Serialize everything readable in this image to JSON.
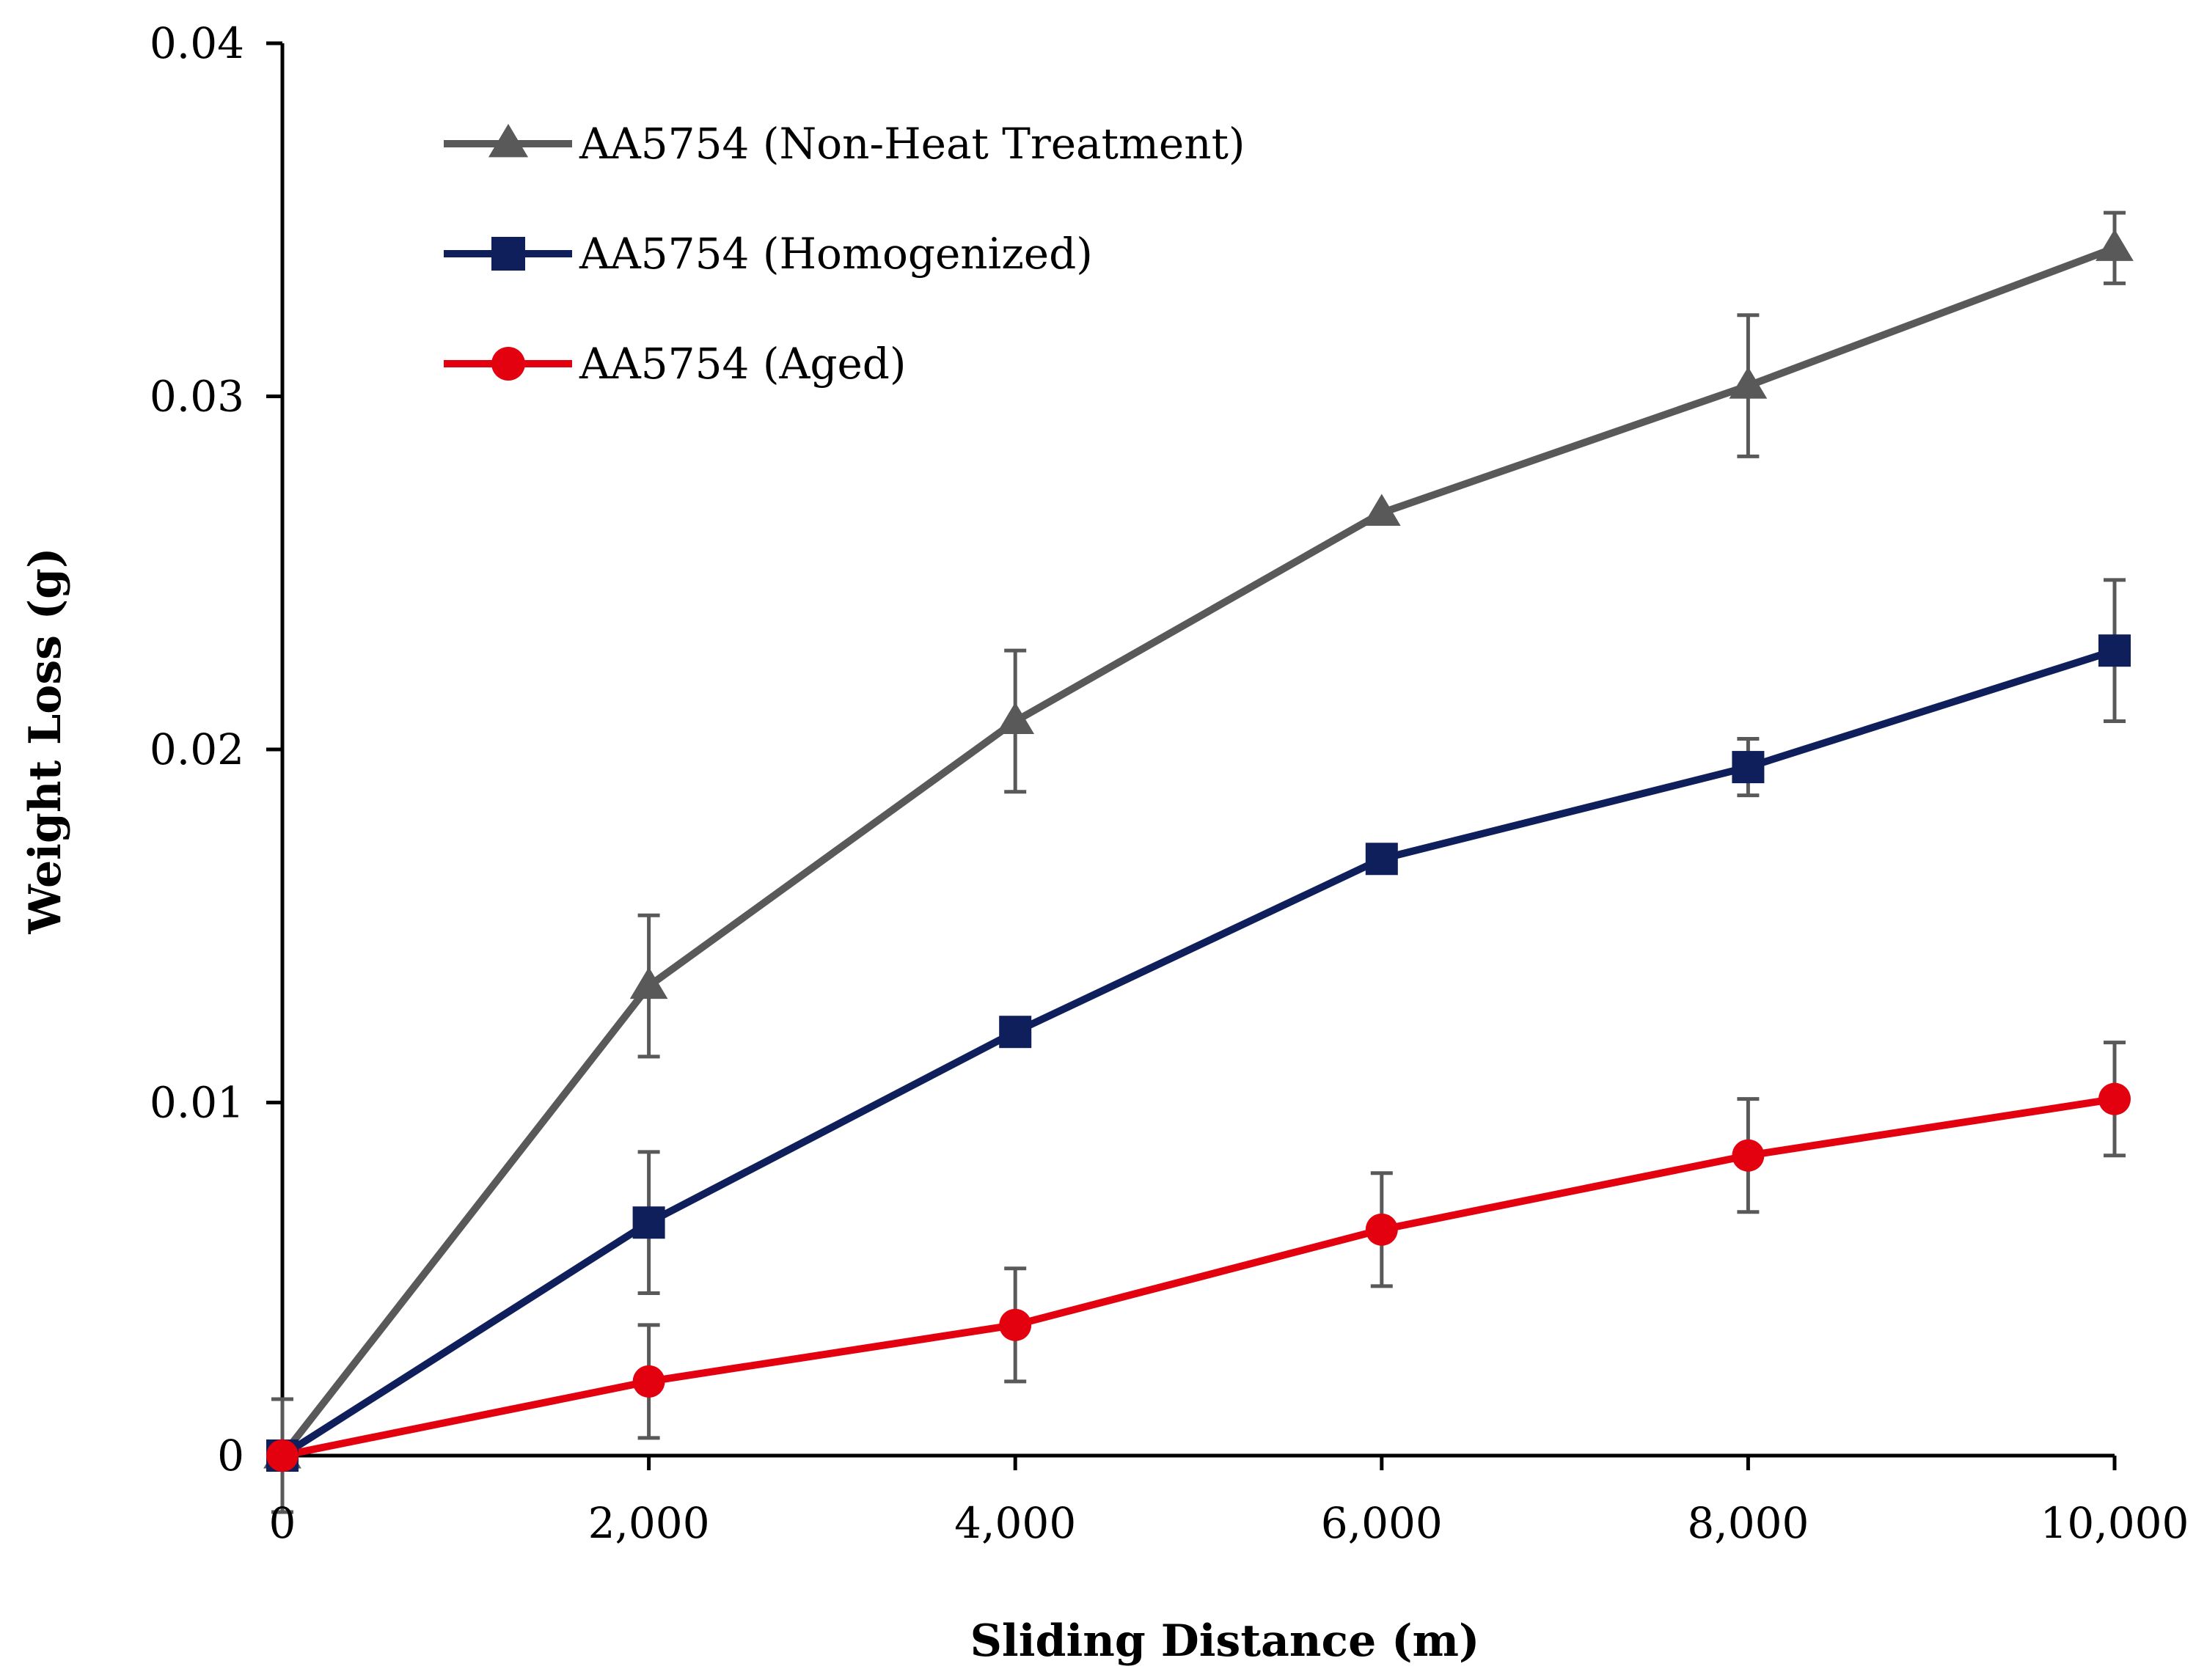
{
  "chart_data": {
    "type": "line",
    "title": "",
    "xlabel": "Sliding Distance (m)",
    "ylabel": "Weight Loss (g)",
    "xlim": [
      0,
      10000
    ],
    "ylim": [
      0,
      0.04
    ],
    "x": [
      0,
      2000,
      4000,
      6000,
      8000,
      10000
    ],
    "x_tick_labels": [
      "0",
      "2,000",
      "4,000",
      "6,000",
      "8,000",
      "10,000"
    ],
    "y_ticks": [
      0,
      0.01,
      0.02,
      0.03,
      0.04
    ],
    "y_tick_labels": [
      "0",
      "0.01",
      "0.02",
      "0.03",
      "0.04"
    ],
    "grid": false,
    "legend_position": "top-left",
    "series": [
      {
        "name": "AA5754 (Non-Heat Treatment)",
        "color": "#595959",
        "marker": "triangle",
        "values": [
          0,
          0.0133,
          0.0208,
          0.0267,
          0.0303,
          0.0342
        ],
        "errors": [
          0.0016,
          0.002,
          0.002,
          0,
          0.002,
          0.001
        ]
      },
      {
        "name": "AA5754 (Homogenized)",
        "color": "#0f1f5c",
        "marker": "square",
        "values": [
          0,
          0.0066,
          0.012,
          0.0169,
          0.0195,
          0.0228
        ],
        "errors": [
          0,
          0.002,
          0,
          0,
          0.0008,
          0.002
        ]
      },
      {
        "name": "AA5754 (Aged)",
        "color": "#e3000f",
        "marker": "circle",
        "values": [
          0,
          0.0021,
          0.0037,
          0.0064,
          0.0085,
          0.0101
        ],
        "errors": [
          0,
          0.0016,
          0.0016,
          0.0016,
          0.0016,
          0.0016
        ]
      }
    ]
  }
}
